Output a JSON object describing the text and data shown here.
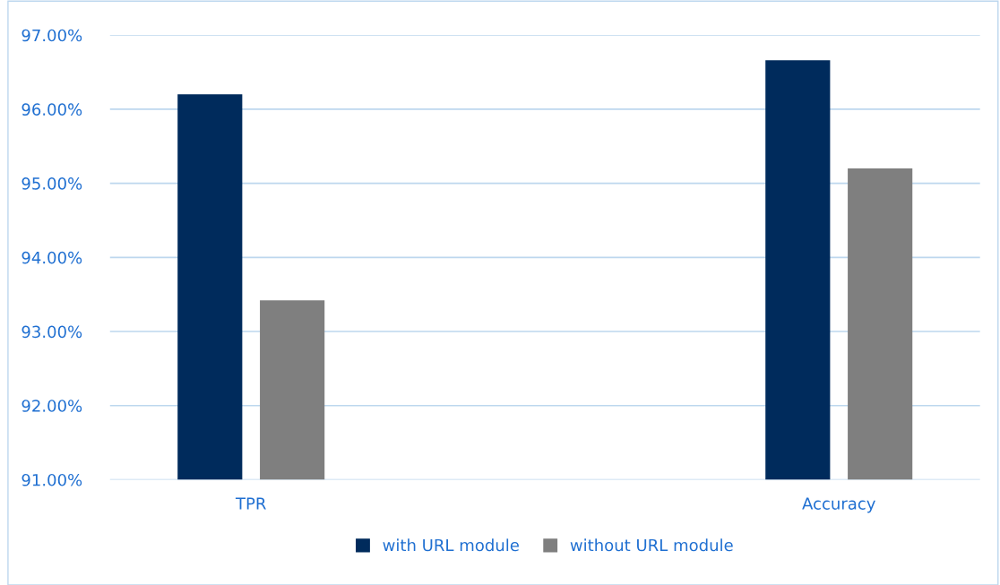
{
  "chart_data": {
    "type": "bar",
    "categories": [
      "TPR",
      "Accuracy"
    ],
    "series": [
      {
        "name": "with URL module",
        "color": "#002b5c",
        "values": [
          96.2,
          96.66
        ]
      },
      {
        "name": "without URL module",
        "color": "#7f7f7f",
        "values": [
          93.42,
          95.2
        ]
      }
    ],
    "ylim": [
      91,
      97
    ],
    "yticks": [
      {
        "value": 91,
        "label": "91.00%"
      },
      {
        "value": 92,
        "label": "92.00%"
      },
      {
        "value": 93,
        "label": "93.00%"
      },
      {
        "value": 94,
        "label": "94.00%"
      },
      {
        "value": 95,
        "label": "95.00%"
      },
      {
        "value": 96,
        "label": "96.00%"
      },
      {
        "value": 97,
        "label": "97.00%"
      }
    ],
    "grid": "y",
    "legend": "bottom"
  }
}
